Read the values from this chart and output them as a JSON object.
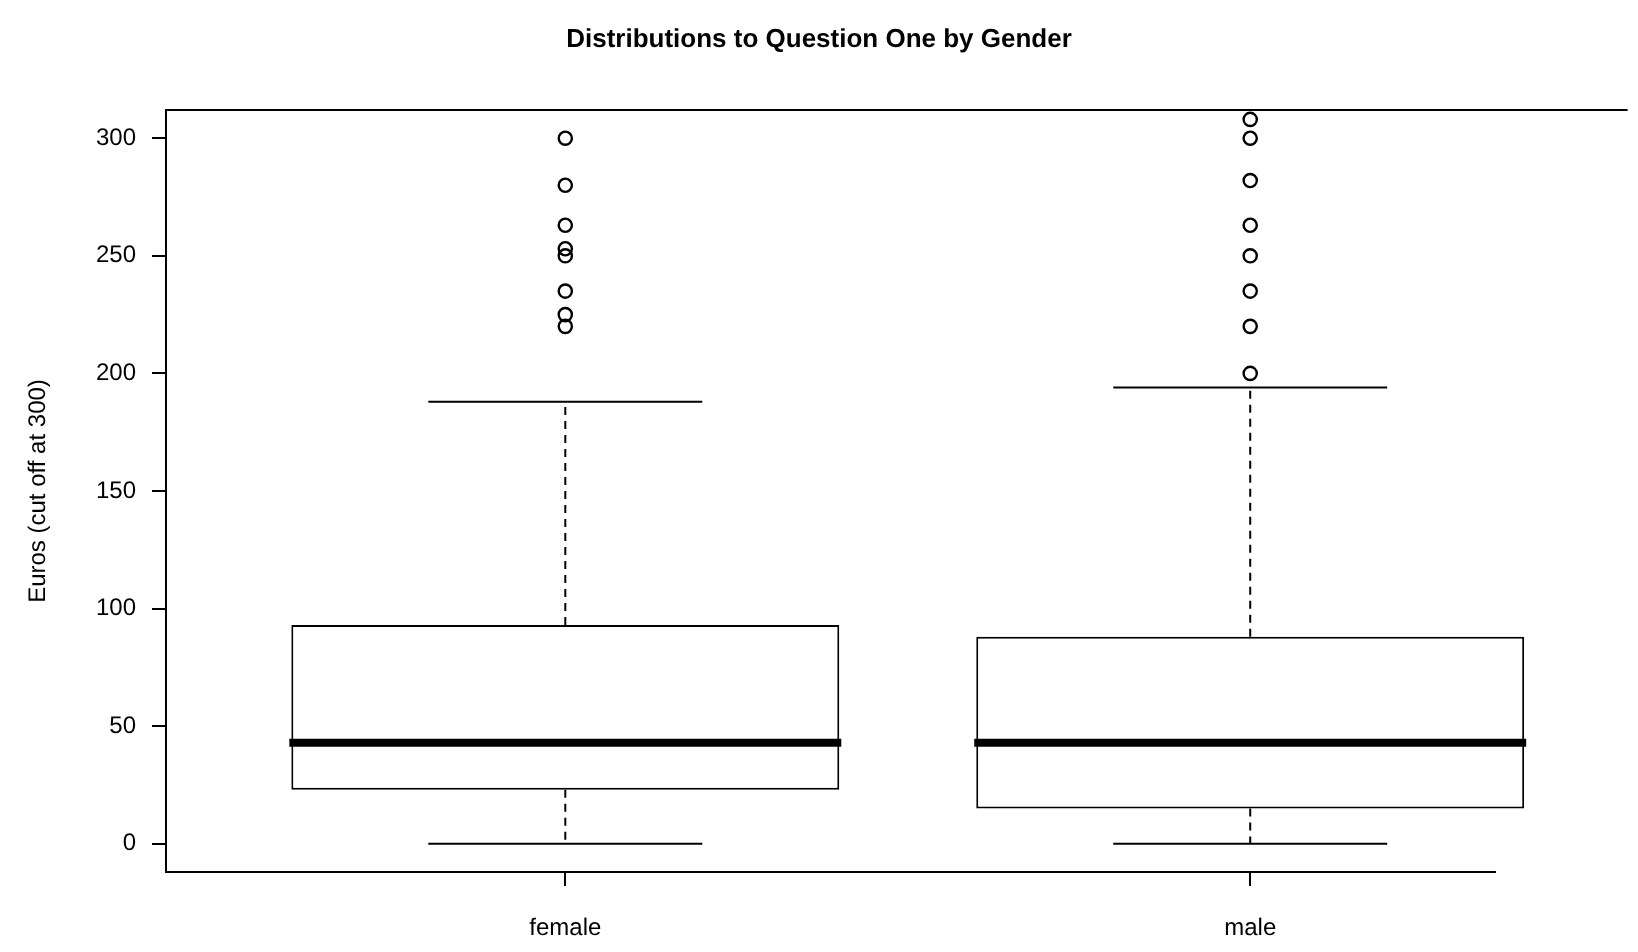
{
  "chart_data": {
    "type": "box",
    "title": "Distributions to Question One by Gender",
    "ylabel": "Euros (cut off at 300)",
    "categories": [
      "female",
      "male"
    ],
    "boxes": [
      {
        "low": 0,
        "q1": 23,
        "median": 43,
        "q3": 93,
        "high": 188,
        "outliers": [
          300,
          280,
          263,
          253,
          250,
          235,
          225,
          220
        ]
      },
      {
        "low": 0,
        "q1": 15,
        "median": 43,
        "q3": 88,
        "high": 194,
        "outliers": [
          308,
          300,
          282,
          263,
          250,
          235,
          220,
          200
        ]
      }
    ],
    "color": "#000000",
    "ylim": [
      -12,
      312
    ],
    "yticks": [
      0,
      50,
      100,
      150,
      200,
      250,
      300
    ],
    "grid": false,
    "legend": false,
    "marker": "circle"
  }
}
